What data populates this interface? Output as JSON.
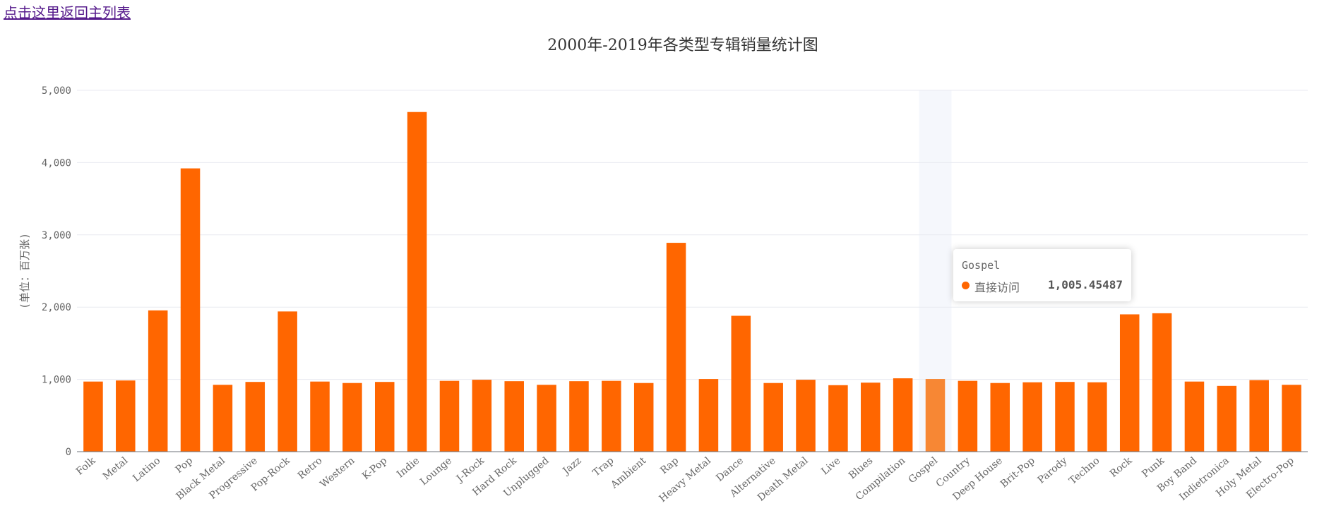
{
  "page": {
    "back_link": "点击这里返回主列表"
  },
  "colors": {
    "bar": "#ff6600",
    "bar_highlight": "#f78734",
    "axis_highlight": "#f5f7fc",
    "grid": "#e8eaf0",
    "text": "#666666"
  },
  "tooltip": {
    "category": "Gospel",
    "series": "直接访问",
    "value": "1,005.45487"
  },
  "chart_data": {
    "type": "bar",
    "title": "2000年-2019年各类型专辑销量统计图",
    "ylabel": "(单位：百万张)",
    "xlabel": "",
    "ylim": [
      0,
      5000
    ],
    "yticks": [
      "0",
      "1,000",
      "2,000",
      "3,000",
      "4,000",
      "5,000"
    ],
    "grid": true,
    "highlighted_category": "Gospel",
    "categories": [
      "Folk",
      "Metal",
      "Latino",
      "Pop",
      "Black Metal",
      "Progressive",
      "Pop-Rock",
      "Retro",
      "Western",
      "K-Pop",
      "Indie",
      "Lounge",
      "J-Rock",
      "Hard Rock",
      "Unplugged",
      "Jazz",
      "Trap",
      "Ambient",
      "Rap",
      "Heavy Metal",
      "Dance",
      "Alternative",
      "Death Metal",
      "Live",
      "Blues",
      "Compilation",
      "Gospel",
      "Country",
      "Deep House",
      "Brit-Pop",
      "Parody",
      "Techno",
      "Rock",
      "Punk",
      "Boy Band",
      "Indietronica",
      "Holy Metal",
      "Electro-Pop"
    ],
    "series": [
      {
        "name": "直接访问",
        "values": [
          970,
          985,
          1955,
          3920,
          925,
          965,
          1940,
          970,
          950,
          965,
          4700,
          980,
          995,
          975,
          925,
          975,
          980,
          950,
          2890,
          1005,
          1880,
          950,
          995,
          920,
          955,
          1015,
          1005.45487,
          980,
          950,
          960,
          965,
          960,
          1900,
          1915,
          970,
          910,
          990,
          925
        ]
      }
    ]
  }
}
